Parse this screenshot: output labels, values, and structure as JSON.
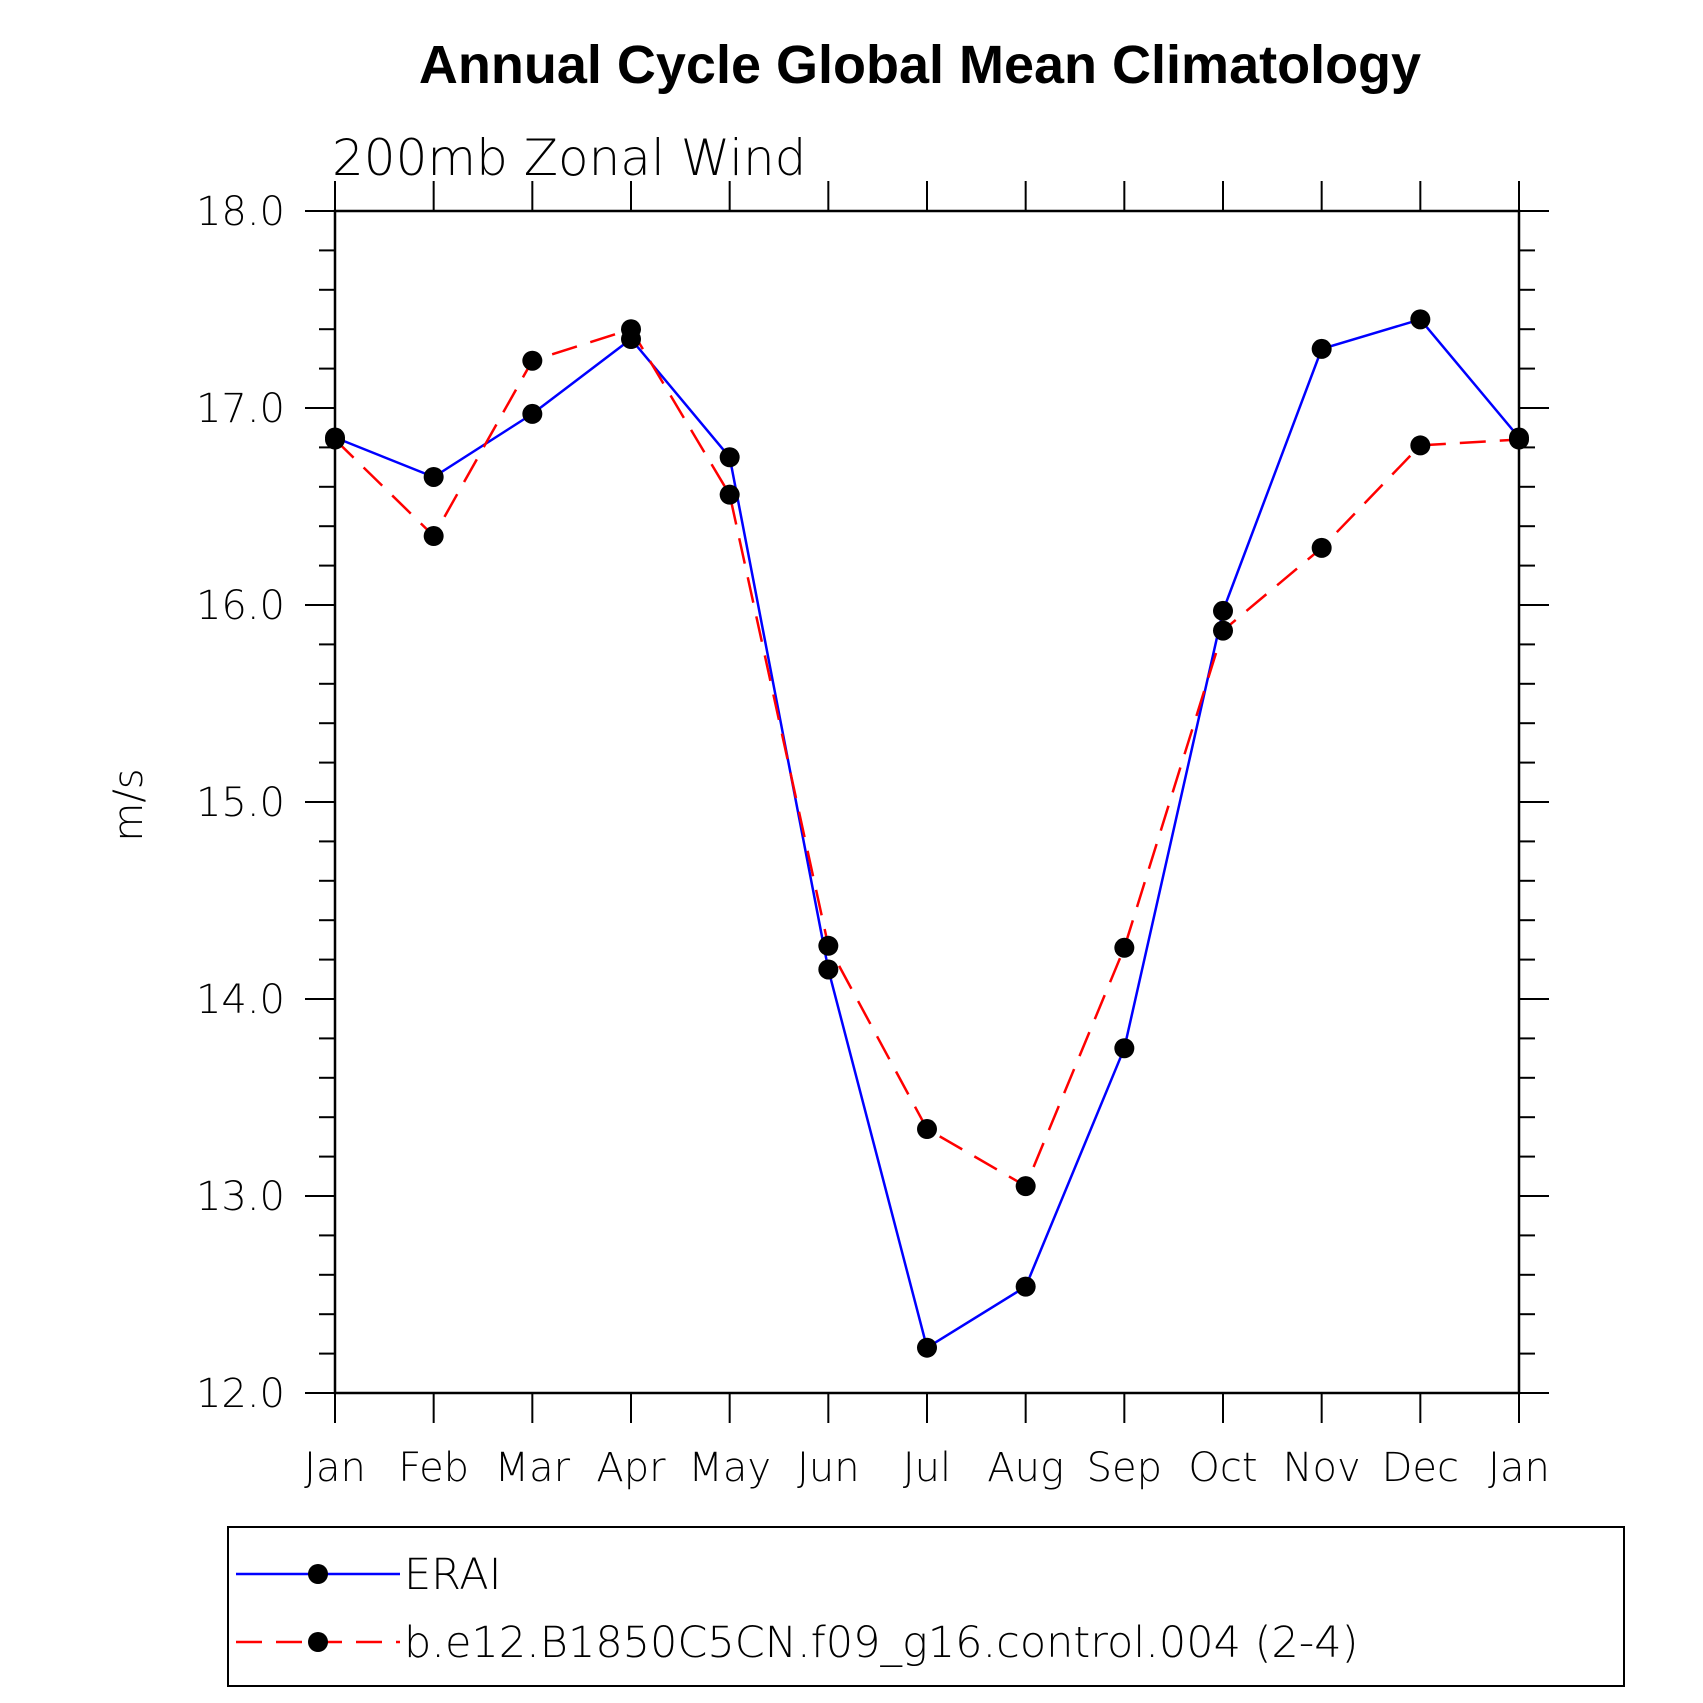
{
  "chart_data": {
    "type": "line",
    "title": "Annual Cycle Global Mean Climatology",
    "subtitle": "200mb Zonal Wind",
    "ylabel": "m/s",
    "xlabel": "",
    "ylim": [
      12.0,
      18.0
    ],
    "yticks": [
      "12.0",
      "13.0",
      "14.0",
      "15.0",
      "16.0",
      "17.0",
      "18.0"
    ],
    "yticks_values": [
      12,
      13,
      14,
      15,
      16,
      17,
      18
    ],
    "categories": [
      "Jan",
      "Feb",
      "Mar",
      "Apr",
      "May",
      "Jun",
      "Jul",
      "Aug",
      "Sep",
      "Oct",
      "Nov",
      "Dec",
      "Jan"
    ],
    "grid": false,
    "legend_position": "bottom",
    "series": [
      {
        "name": "ERAI",
        "color": "#0000ff",
        "dash": "solid",
        "marker": "dot",
        "values": [
          16.85,
          16.65,
          16.97,
          17.35,
          16.75,
          14.15,
          12.23,
          12.54,
          13.75,
          15.97,
          17.3,
          17.45,
          16.85
        ]
      },
      {
        "name": "b.e12.B1850C5CN.f09_g16.control.004 (2-4)",
        "color": "#ff0000",
        "dash": "dashed",
        "marker": "dot",
        "values": [
          16.84,
          16.35,
          17.24,
          17.4,
          16.56,
          14.27,
          13.34,
          13.05,
          14.26,
          15.87,
          16.29,
          16.81,
          16.84
        ]
      }
    ]
  }
}
